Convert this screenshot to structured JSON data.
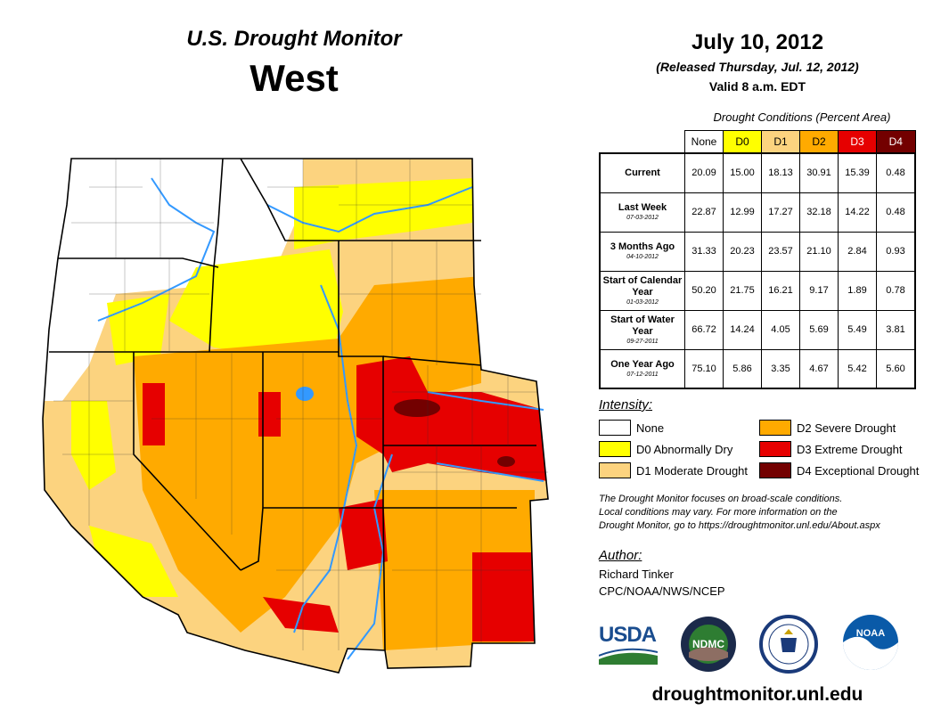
{
  "header": {
    "title": "U.S. Drought Monitor",
    "region": "West",
    "date": "July 10, 2012",
    "released": "(Released Thursday, Jul. 12, 2012)",
    "valid": "Valid 8 a.m. EDT"
  },
  "table": {
    "caption": "Drought Conditions (Percent Area)",
    "columns": [
      "None",
      "D0",
      "D1",
      "D2",
      "D3",
      "D4"
    ],
    "rows": [
      {
        "label": "Current",
        "date": "",
        "values": [
          "20.09",
          "15.00",
          "18.13",
          "30.91",
          "15.39",
          "0.48"
        ]
      },
      {
        "label": "Last Week",
        "date": "07-03-2012",
        "values": [
          "22.87",
          "12.99",
          "17.27",
          "32.18",
          "14.22",
          "0.48"
        ]
      },
      {
        "label": "3 Months Ago",
        "date": "04-10-2012",
        "values": [
          "31.33",
          "20.23",
          "23.57",
          "21.10",
          "2.84",
          "0.93"
        ]
      },
      {
        "label": "Start of Calendar Year",
        "date": "01-03-2012",
        "values": [
          "50.20",
          "21.75",
          "16.21",
          "9.17",
          "1.89",
          "0.78"
        ]
      },
      {
        "label": "Start of Water Year",
        "date": "09-27-2011",
        "values": [
          "66.72",
          "14.24",
          "4.05",
          "5.69",
          "5.49",
          "3.81"
        ]
      },
      {
        "label": "One Year Ago",
        "date": "07-12-2011",
        "values": [
          "75.10",
          "5.86",
          "3.35",
          "4.67",
          "5.42",
          "5.60"
        ]
      }
    ]
  },
  "legend": {
    "title": "Intensity:",
    "items": [
      {
        "label": "None",
        "color": "#ffffff"
      },
      {
        "label": "D0 Abnormally Dry",
        "color": "#ffff00"
      },
      {
        "label": "D1 Moderate Drought",
        "color": "#fcd37f"
      },
      {
        "label": "D2 Severe Drought",
        "color": "#ffaa00"
      },
      {
        "label": "D3 Extreme Drought",
        "color": "#e60000"
      },
      {
        "label": "D4 Exceptional Drought",
        "color": "#730000"
      }
    ]
  },
  "note": {
    "line1": "The Drought Monitor focuses on broad-scale conditions.",
    "line2": "Local conditions may vary. For more information on the",
    "line3": "Drought Monitor, go to https://droughtmonitor.unl.edu/About.aspx"
  },
  "author": {
    "label": "Author:",
    "name": "Richard Tinker",
    "org": "CPC/NOAA/NWS/NCEP"
  },
  "logos": {
    "usda": "USDA",
    "ndmc": "NDMC",
    "noaa": "NOAA"
  },
  "url": "droughtmonitor.unl.edu",
  "colors": {
    "water": "#3399ff",
    "border": "#000000"
  }
}
